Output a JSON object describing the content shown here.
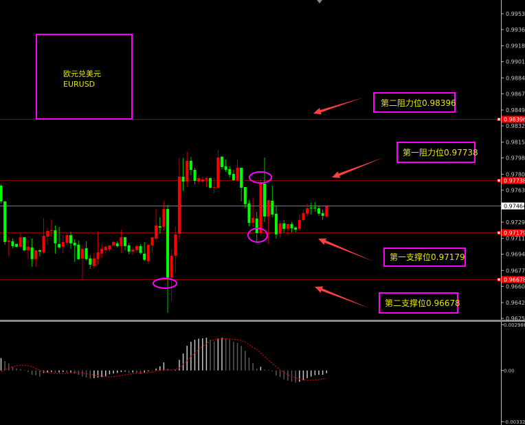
{
  "chart_data": {
    "type": "candlestick",
    "symbol_label": {
      "line1": "欧元兑美元",
      "line2": "EURUSD"
    },
    "price_axis": {
      "range": [
        0.96255,
        0.9953
      ],
      "ticks": [
        "0.99530",
        "0.99360",
        "0.99185",
        "0.99015",
        "0.98840",
        "0.98670",
        "0.98495",
        "0.98325",
        "0.98150",
        "0.97980",
        "0.97805",
        "0.97635",
        "0.97290",
        "0.97115",
        "0.96945",
        "0.96770",
        "0.96600",
        "0.96425",
        "0.96255"
      ]
    },
    "current_price": {
      "value": 0.97464,
      "label": "0.97464"
    },
    "levels": [
      {
        "value": 0.98396,
        "axis_label": "0.98396",
        "annotation": "第二阻力位0.98396"
      },
      {
        "value": 0.97738,
        "axis_label": "0.97738",
        "annotation": "第一阻力位0.97738"
      },
      {
        "value": 0.97179,
        "axis_label": "0.97179",
        "annotation": "第一支撑位0.97179"
      },
      {
        "value": 0.96678,
        "axis_label": "0.96678",
        "annotation": "第二支撑位0.96678"
      }
    ],
    "colors": {
      "up": "#ff0000",
      "down": "#00ff00",
      "level_line": "#8b0000",
      "annotation_box": "#ff00ff",
      "annotation_text": "#e6e600",
      "arrow": "#ff4040",
      "current_price_line": "#708090",
      "signal": "#cc0000",
      "histogram": "#b0b0b0"
    },
    "candles_ohlc": [
      [
        0.97682,
        0.97697,
        0.97491,
        0.97513
      ],
      [
        0.97513,
        0.97513,
        0.97047,
        0.97077
      ],
      [
        0.97077,
        0.97128,
        0.96922,
        0.97092
      ],
      [
        0.97084,
        0.97113,
        0.9701,
        0.97032
      ],
      [
        0.97055,
        0.97062,
        0.97018,
        0.97025
      ],
      [
        0.97025,
        0.97172,
        0.97025,
        0.97128
      ],
      [
        0.97128,
        0.97128,
        0.96973,
        0.96988
      ],
      [
        0.96988,
        0.97099,
        0.96892,
        0.97025
      ],
      [
        0.97018,
        0.97113,
        0.96811,
        0.96892
      ],
      [
        0.96892,
        0.96988,
        0.96811,
        0.96988
      ],
      [
        0.96988,
        0.96996,
        0.96922,
        0.96973
      ],
      [
        0.96966,
        0.97335,
        0.96951,
        0.97143
      ],
      [
        0.97135,
        0.97232,
        0.97047,
        0.97195
      ],
      [
        0.97195,
        0.9732,
        0.97135,
        0.97202
      ],
      [
        0.97202,
        0.97254,
        0.96951,
        0.97062
      ],
      [
        0.97055,
        0.97239,
        0.97003,
        0.97018
      ],
      [
        0.97025,
        0.97158,
        0.96959,
        0.97077
      ],
      [
        0.97069,
        0.9718,
        0.9704,
        0.9715
      ],
      [
        0.9715,
        0.97187,
        0.97003,
        0.97062
      ],
      [
        0.97069,
        0.97106,
        0.96863,
        0.9704
      ],
      [
        0.97047,
        0.97092,
        0.96885,
        0.96892
      ],
      [
        0.969,
        0.9704,
        0.96678,
        0.97003
      ],
      [
        0.9701,
        0.97084,
        0.96877,
        0.96892
      ],
      [
        0.969,
        0.96936,
        0.96789,
        0.96833
      ],
      [
        0.96818,
        0.96959,
        0.96796,
        0.969
      ],
      [
        0.96892,
        0.97187,
        0.96833,
        0.96966
      ],
      [
        0.96951,
        0.97055,
        0.96907,
        0.97003
      ],
      [
        0.96988,
        0.9704,
        0.96951,
        0.97025
      ],
      [
        0.96996,
        0.9704,
        0.96973,
        0.9704
      ],
      [
        0.9704,
        0.97084,
        0.97025,
        0.97077
      ],
      [
        0.97062,
        0.97084,
        0.97018,
        0.97032
      ],
      [
        0.97032,
        0.97209,
        0.96959,
        0.97128
      ],
      [
        0.97128,
        0.97128,
        0.96988,
        0.97032
      ],
      [
        0.9704,
        0.97062,
        0.96944,
        0.96973
      ],
      [
        0.96973,
        0.97025,
        0.96936,
        0.96996
      ],
      [
        0.96988,
        0.97047,
        0.96959,
        0.97032
      ],
      [
        0.97032,
        0.97055,
        0.96944,
        0.96959
      ],
      [
        0.96951,
        0.97077,
        0.9687,
        0.96885
      ],
      [
        0.9687,
        0.97047,
        0.96841,
        0.97047
      ],
      [
        0.9704,
        0.97128,
        0.96966,
        0.97128
      ],
      [
        0.97113,
        0.97431,
        0.97092,
        0.97254
      ],
      [
        0.97246,
        0.97343,
        0.97165,
        0.97232
      ],
      [
        0.97239,
        0.9752,
        0.97202,
        0.97431
      ],
      [
        0.97431,
        0.97476,
        0.96316,
        0.96693
      ],
      [
        0.96693,
        0.97003,
        0.96441,
        0.96929
      ],
      [
        0.96929,
        0.97246,
        0.96745,
        0.97158
      ],
      [
        0.97165,
        0.97978,
        0.97092,
        0.97778
      ],
      [
        0.97778,
        0.97978,
        0.97623,
        0.97726
      ],
      [
        0.97726,
        0.98045,
        0.97667,
        0.97949
      ],
      [
        0.97949,
        0.97993,
        0.97793,
        0.97852
      ],
      [
        0.97852,
        0.97874,
        0.97697,
        0.97734
      ],
      [
        0.97726,
        0.97793,
        0.97697,
        0.97763
      ],
      [
        0.97726,
        0.97778,
        0.97711,
        0.97749
      ],
      [
        0.97749,
        0.97778,
        0.97667,
        0.97763
      ],
      [
        0.97763,
        0.97771,
        0.97652,
        0.9766
      ],
      [
        0.9766,
        0.97771,
        0.97601,
        0.97667
      ],
      [
        0.9766,
        0.98067,
        0.9766,
        0.97985
      ],
      [
        0.97993,
        0.98,
        0.9786,
        0.97882
      ],
      [
        0.97889,
        0.97963,
        0.9783,
        0.97852
      ],
      [
        0.9786,
        0.97889,
        0.97771,
        0.978
      ],
      [
        0.97808,
        0.97852,
        0.97734,
        0.97741
      ],
      [
        0.97741,
        0.97963,
        0.97734,
        0.97874
      ],
      [
        0.97874,
        0.97874,
        0.97513,
        0.9766
      ],
      [
        0.97667,
        0.97667,
        0.97439,
        0.97483
      ],
      [
        0.97491,
        0.97527,
        0.97246,
        0.97283
      ],
      [
        0.97283,
        0.97557,
        0.97239,
        0.97335
      ],
      [
        0.97328,
        0.97402,
        0.97069,
        0.97172
      ],
      [
        0.97172,
        0.97756,
        0.97143,
        0.97711
      ],
      [
        0.97704,
        0.97985,
        0.97291,
        0.9735
      ],
      [
        0.9735,
        0.97527,
        0.97055,
        0.97527
      ],
      [
        0.9752,
        0.97682,
        0.97343,
        0.97372
      ],
      [
        0.9738,
        0.97468,
        0.97113,
        0.97158
      ],
      [
        0.97165,
        0.97306,
        0.97121,
        0.97276
      ],
      [
        0.97276,
        0.97313,
        0.97172,
        0.97217
      ],
      [
        0.97217,
        0.97269,
        0.9715,
        0.97269
      ],
      [
        0.97269,
        0.97291,
        0.9718,
        0.97224
      ],
      [
        0.97232,
        0.97246,
        0.9718,
        0.97209
      ],
      [
        0.97217,
        0.97372,
        0.97209,
        0.97313
      ],
      [
        0.97313,
        0.97424,
        0.97298,
        0.97387
      ],
      [
        0.9738,
        0.97491,
        0.9735,
        0.97439
      ],
      [
        0.97446,
        0.97498,
        0.97372,
        0.97439
      ],
      [
        0.97446,
        0.97505,
        0.97402,
        0.97439
      ],
      [
        0.97439,
        0.97468,
        0.97357,
        0.9738
      ],
      [
        0.97387,
        0.97424,
        0.97313,
        0.97357
      ],
      [
        0.9735,
        0.97468,
        0.97343,
        0.97461
      ]
    ],
    "macd": {
      "axis": {
        "range": [
          -0.003325,
          0.002986
        ],
        "ticks": [
          "0.002986",
          "0.00",
          "-0.003325"
        ]
      },
      "histogram": [
        0.00081,
        0.00061,
        0.00046,
        0.00024,
        0.00013,
        9e-05,
        3e-05,
        -0.0001,
        -0.00028,
        -0.00031,
        -0.0004,
        -0.00016,
        -0.00013,
        -0.0001,
        -0.00016,
        -0.00013,
        -0.0001,
        -0.00016,
        -0.00013,
        -0.0002,
        -0.00028,
        -0.0004,
        -0.00046,
        -0.00052,
        -0.0005,
        -0.00046,
        -0.00043,
        -0.00037,
        -0.00025,
        -0.0002,
        -0.00016,
        -0.0001,
        -7e-05,
        -0.00016,
        -0.00013,
        -0.00016,
        -0.00022,
        -0.00016,
        -6e-05,
        -1e-05,
        0.00013,
        0.00027,
        0.00052,
        0.00012,
        4e-05,
        4e-05,
        0.00069,
        0.0011,
        0.00161,
        0.00187,
        0.002,
        0.00207,
        0.00209,
        0.00213,
        0.002,
        0.00188,
        0.00209,
        0.00213,
        0.00207,
        0.002,
        0.00187,
        0.0018,
        0.0016,
        0.00128,
        0.00084,
        0.00049,
        0.00013,
        0.00024,
        6e-05,
        4e-05,
        -6e-05,
        -0.00033,
        -0.00043,
        -0.00058,
        -0.00066,
        -0.00073,
        -0.0008,
        -0.00073,
        -0.00063,
        -0.0005,
        -0.0004,
        -0.00031,
        -0.00028,
        -0.00028,
        -0.00018
      ],
      "signal": [
        -7e-05,
        4e-05,
        0.00016,
        0.00024,
        0.00031,
        0.00034,
        0.00034,
        0.00031,
        0.00024,
        0.00012,
        0,
        -7e-05,
        -0.00013,
        -0.00018,
        -0.00019,
        -0.00021,
        -0.00021,
        -0.00018,
        -0.00016,
        -0.00013,
        -0.00013,
        -0.00016,
        -0.00021,
        -0.00025,
        -0.0003,
        -0.00034,
        -0.00037,
        -0.0004,
        -0.00042,
        -0.0004,
        -0.00037,
        -0.00033,
        -0.00028,
        -0.00024,
        -0.00021,
        -0.00018,
        -0.00016,
        -0.00015,
        -0.00013,
        -0.0001,
        -6e-05,
        0,
        3e-05,
        4e-05,
        4e-05,
        9e-05,
        0.00016,
        0.00039,
        0.00061,
        0.00091,
        0.00113,
        0.00136,
        0.00158,
        0.00176,
        0.00191,
        0.002,
        0.00204,
        0.00206,
        0.00207,
        0.00206,
        0.00203,
        0.002,
        0.00194,
        0.00185,
        0.00168,
        0.0015,
        0.00136,
        0.00113,
        0.00091,
        0.00069,
        0.00046,
        0.00024,
        4e-05,
        -0.00013,
        -0.00028,
        -0.00039,
        -0.00048,
        -0.00055,
        -0.0006,
        -0.00063,
        -0.00063,
        -0.00061,
        -0.0006,
        -0.00055,
        -0.00051
      ]
    },
    "annotations": {
      "circles": [
        "high-near-first-resistance",
        "low-near-first-support",
        "low-near-second-support"
      ],
      "arrows": [
        "points-to-second-resistance",
        "points-to-first-resistance",
        "points-to-first-support",
        "points-to-second-support"
      ]
    }
  }
}
